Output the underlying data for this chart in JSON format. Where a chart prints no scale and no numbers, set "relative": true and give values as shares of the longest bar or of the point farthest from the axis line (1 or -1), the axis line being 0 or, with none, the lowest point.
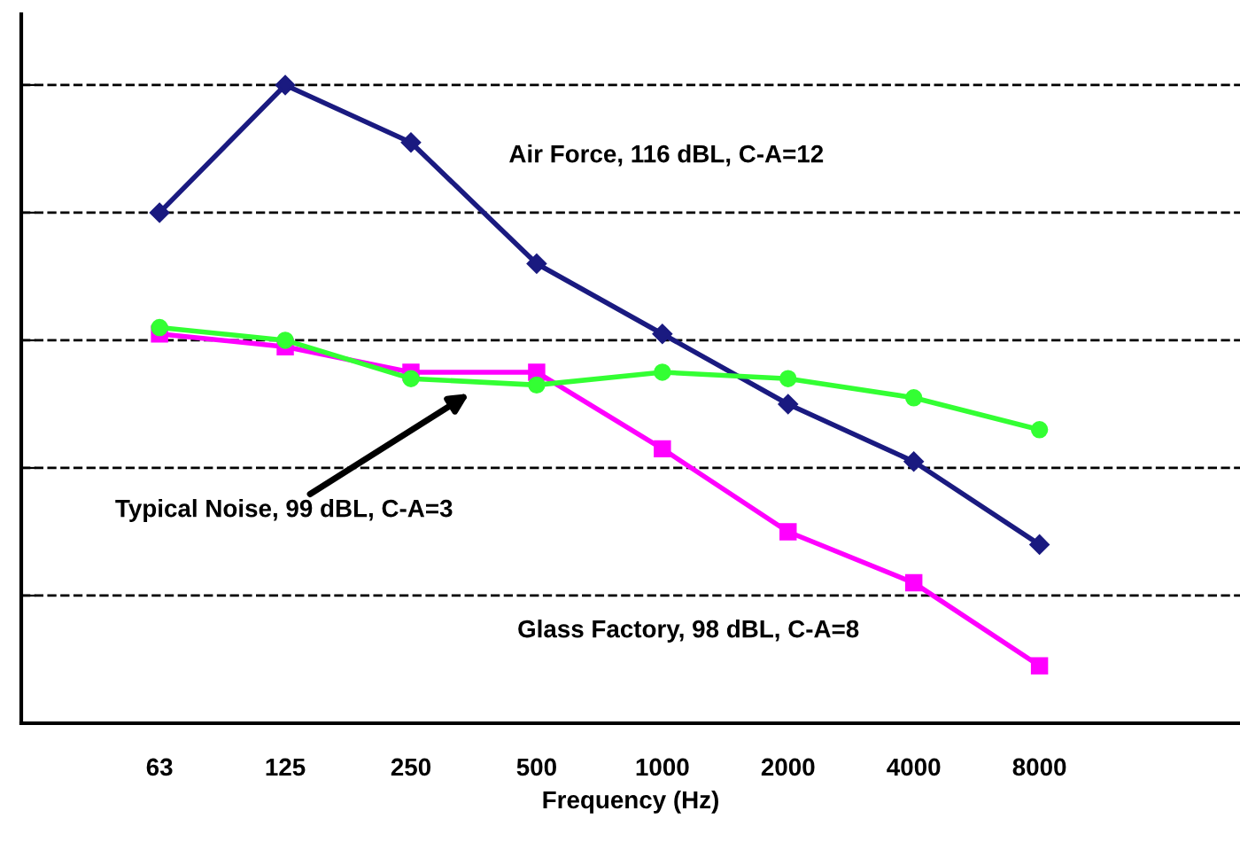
{
  "chart_data": {
    "type": "line",
    "relative": true,
    "xlabel": "Frequency (Hz)",
    "categories": [
      "63",
      "125",
      "250",
      "500",
      "1000",
      "2000",
      "4000",
      "8000"
    ],
    "grid": "y",
    "legend": false,
    "series": [
      {
        "name": "Air Force, 116 dBL, C-A=12",
        "color": "#1a1a80",
        "marker": "diamond",
        "values": [
          0.8,
          1,
          0.91,
          0.72,
          0.61,
          0.5,
          0.41,
          0.28
        ]
      },
      {
        "name": "Typical Noise, 99 dBL, C-A=3",
        "color": "#33ff33",
        "marker": "circle",
        "values": [
          0.62,
          0.6,
          0.54,
          0.53,
          0.55,
          0.54,
          0.51,
          0.46
        ]
      },
      {
        "name": "Glass Factory, 98 dBL, C-A=8",
        "color": "#ff00ff",
        "marker": "square",
        "values": [
          0.61,
          0.59,
          0.55,
          0.55,
          0.43,
          0.3,
          0.22,
          0.09
        ]
      }
    ]
  }
}
